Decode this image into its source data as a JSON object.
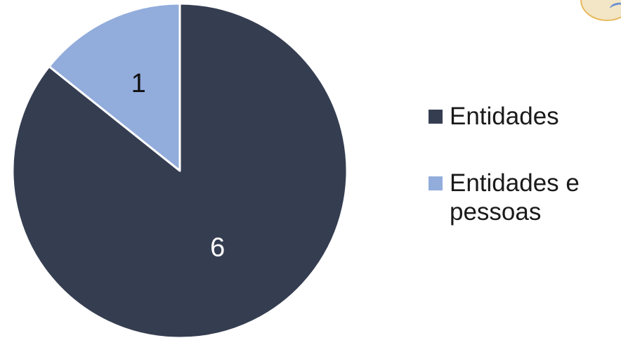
{
  "chart_data": {
    "type": "pie",
    "title": "",
    "categories": [
      "Entidades",
      "Entidades e pessoas"
    ],
    "values": [
      6,
      1
    ],
    "data_labels": [
      "6",
      "1"
    ],
    "colors": [
      "#353e51",
      "#92acdc"
    ],
    "start_angle_deg": 0,
    "direction": "clockwise",
    "legend_position": "right"
  },
  "legend": {
    "items": [
      {
        "label": "Entidades",
        "color": "#353e51"
      },
      {
        "label": "Entidades e pessoas",
        "color": "#92acdc"
      }
    ]
  },
  "logo": {
    "icon": "partial-circular-logo-icon",
    "color": "#e7b95c"
  }
}
